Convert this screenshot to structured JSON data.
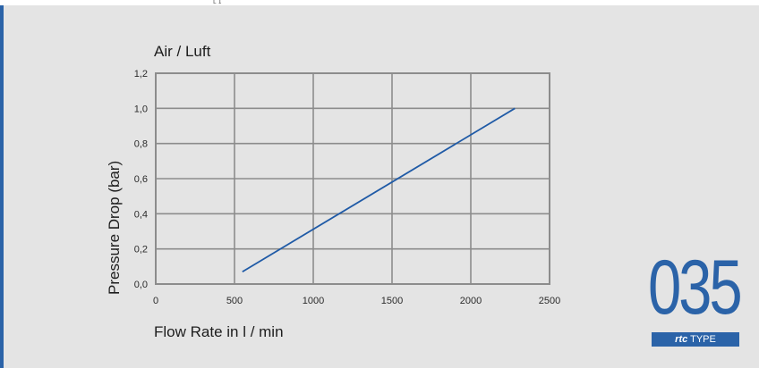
{
  "top_fragment": "ʟ  ɪ",
  "chart_data": {
    "type": "line",
    "title": "Air / Luft",
    "xlabel": "Flow Rate in l / min",
    "ylabel": "Pressure Drop (bar)",
    "xlim": [
      0,
      2500
    ],
    "ylim": [
      0.0,
      1.2
    ],
    "x_ticks": [
      "0",
      "500",
      "1000",
      "1500",
      "2000",
      "2500"
    ],
    "y_ticks": [
      "0,0",
      "0,2",
      "0,4",
      "0,6",
      "0,8",
      "1,0",
      "1,2"
    ],
    "grid": true,
    "series": [
      {
        "x": [
          550,
          2280
        ],
        "y": [
          0.07,
          1.0
        ]
      }
    ],
    "line_color": "#1f5aa6"
  },
  "badge": {
    "number": "035",
    "brand": "rtc",
    "type_label": "TYPE",
    "color": "#2b63a8"
  }
}
